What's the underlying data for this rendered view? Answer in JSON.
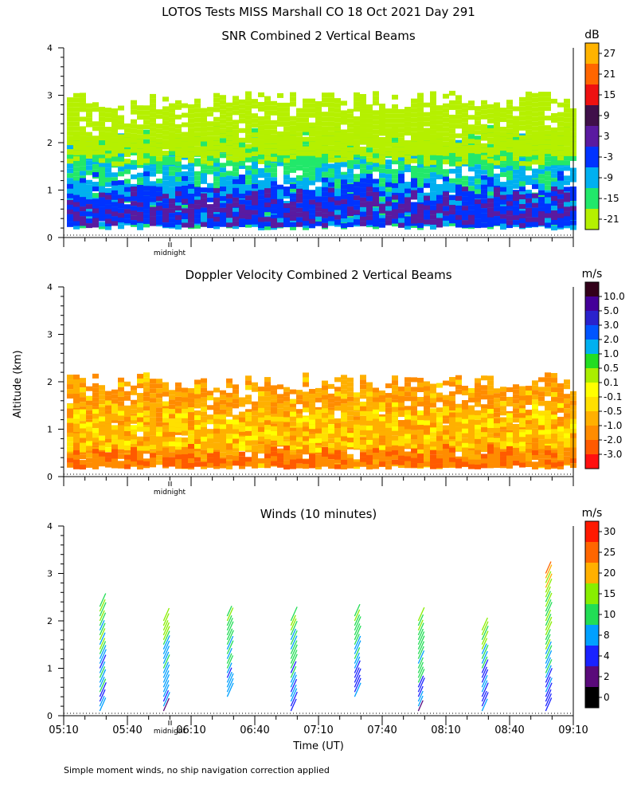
{
  "main_title": "LOTOS Tests MISS Marshall CO  18 Oct 2021 Day 291",
  "y_axis_label": "Altitude (km)",
  "x_axis_label": "Time (UT)",
  "midnight_label": "midnight",
  "footnote": "Simple moment winds, no ship navigation correction applied",
  "colors": {
    "background": "#ffffff",
    "axis": "#000000"
  },
  "chart_data": [
    {
      "type": "heatmap",
      "title": "SNR Combined 2 Vertical Beams",
      "xlabel": "",
      "ylabel": "Altitude (km)",
      "ylim": [
        0,
        4
      ],
      "yticks": [
        0,
        1,
        2,
        3,
        4
      ],
      "xlim": [
        "05:10",
        "09:10"
      ],
      "xticks": [
        "05:10",
        "05:40",
        "06:10",
        "06:40",
        "07:10",
        "07:40",
        "08:10",
        "08:40",
        "09:10"
      ],
      "show_time_labels": false,
      "midnight_marker": true,
      "colorbar": {
        "unit": "dB",
        "tick_labels": [
          "-21",
          "-15",
          "-9",
          "-3",
          "3",
          "9",
          "15",
          "21",
          "27"
        ],
        "colors": [
          "#b5f000",
          "#22e86a",
          "#00b0f0",
          "#0033ff",
          "#5a1aa0",
          "#40104a",
          "#ee1111",
          "#ff6600",
          "#ffb300"
        ]
      },
      "layers": [
        {
          "alt_min": 0.25,
          "alt_max": 2.0,
          "value": -9
        },
        {
          "alt_min": 0.3,
          "alt_max": 1.2,
          "value": -3
        },
        {
          "alt_min": 0.3,
          "alt_max": 0.9,
          "value": 3
        },
        {
          "alt_min": 1.6,
          "alt_max": 2.2,
          "value": -15
        },
        {
          "alt_min": 1.8,
          "alt_max": 2.9,
          "value": -21
        }
      ]
    },
    {
      "type": "heatmap",
      "title": "Doppler Velocity Combined 2 Vertical Beams",
      "xlabel": "",
      "ylabel": "Altitude (km)",
      "ylim": [
        0,
        4
      ],
      "yticks": [
        0,
        1,
        2,
        3,
        4
      ],
      "xlim": [
        "05:10",
        "09:10"
      ],
      "xticks": [
        "05:10",
        "05:40",
        "06:10",
        "06:40",
        "07:10",
        "07:40",
        "08:10",
        "08:40",
        "09:10"
      ],
      "show_time_labels": false,
      "midnight_marker": true,
      "colorbar": {
        "unit": "m/s",
        "tick_labels": [
          "-3.0",
          "-2.0",
          "-1.0",
          "-0.5",
          "-0.1",
          "0.1",
          "0.5",
          "1.0",
          "2.0",
          "3.0",
          "5.0",
          "10.0"
        ],
        "colors": [
          "#ff1010",
          "#ff5a00",
          "#ff8c00",
          "#ffb000",
          "#ffe000",
          "#ffff00",
          "#aaee00",
          "#22dd22",
          "#00b0f0",
          "#0055ff",
          "#2a22cc",
          "#440099",
          "#33001a"
        ]
      },
      "layers": [
        {
          "alt_min": 0.25,
          "alt_max": 2.0,
          "value": -1.0
        },
        {
          "alt_min": 0.6,
          "alt_max": 1.4,
          "value": -0.5
        },
        {
          "alt_min": 0.25,
          "alt_max": 0.5,
          "value": -2.0
        }
      ]
    },
    {
      "type": "wind_barbs",
      "title": "Winds (10 minutes)",
      "xlabel": "Time (UT)",
      "ylabel": "Altitude (km)",
      "ylim": [
        0,
        4
      ],
      "yticks": [
        0,
        1,
        2,
        3,
        4
      ],
      "xlim": [
        "05:10",
        "09:10"
      ],
      "xticks": [
        "05:10",
        "05:40",
        "06:10",
        "06:40",
        "07:10",
        "07:40",
        "08:10",
        "08:40",
        "09:10"
      ],
      "show_time_labels": true,
      "midnight_marker": true,
      "colorbar": {
        "unit": "m/s",
        "tick_labels": [
          "0",
          "2",
          "4",
          "8",
          "10",
          "15",
          "20",
          "25",
          "30"
        ],
        "colors": [
          "#000000",
          "#5a0a7a",
          "#1a22ff",
          "#00a0ff",
          "#22dd55",
          "#88ee00",
          "#ffb000",
          "#ff6600",
          "#ff1a00"
        ]
      },
      "profiles": [
        {
          "time": "05:30",
          "alt_min": 0.0,
          "alt_max": 2.3
        },
        {
          "time": "06:00",
          "alt_min": 0.0,
          "alt_max": 2.0
        },
        {
          "time": "06:30",
          "alt_min": 0.3,
          "alt_max": 2.1
        },
        {
          "time": "07:00",
          "alt_min": 0.0,
          "alt_max": 2.0
        },
        {
          "time": "07:30",
          "alt_min": 0.3,
          "alt_max": 2.1
        },
        {
          "time": "08:00",
          "alt_min": 0.0,
          "alt_max": 2.0
        },
        {
          "time": "08:30",
          "alt_min": 0.0,
          "alt_max": 1.8
        },
        {
          "time": "09:00",
          "alt_min": 0.0,
          "alt_max": 3.0
        }
      ]
    }
  ]
}
